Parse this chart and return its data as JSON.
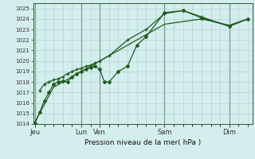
{
  "background_color": "#d4eeed",
  "grid_color": "#aacece",
  "line_color": "#1e5c1e",
  "title": "Pression niveau de la mer( hPa )",
  "ylim": [
    1014,
    1025.5
  ],
  "yticks": [
    1014,
    1015,
    1016,
    1017,
    1018,
    1019,
    1020,
    1021,
    1022,
    1023,
    1024,
    1025
  ],
  "day_labels": [
    "Jeu",
    "Lun",
    "Ven",
    "Sam",
    "Dim"
  ],
  "day_positions": [
    0,
    5,
    7,
    14,
    21
  ],
  "xlim": [
    -0.2,
    23.5
  ],
  "line1_x": [
    0,
    0.5,
    1.0,
    1.5,
    2.0,
    2.5,
    3.0,
    3.5,
    4.0,
    4.5,
    5.0,
    5.5,
    6.0,
    6.5,
    7.0,
    7.5,
    8.0,
    9.0,
    10.0,
    11.0,
    12.0,
    14.0,
    16.0,
    18.0,
    21.0,
    23.0
  ],
  "line1_y": [
    1014.1,
    1015.1,
    1016.2,
    1017.0,
    1017.8,
    1018.0,
    1018.1,
    1018.0,
    1018.5,
    1018.8,
    1019.0,
    1019.2,
    1019.4,
    1019.5,
    1019.2,
    1018.0,
    1018.0,
    1019.0,
    1019.5,
    1021.5,
    1022.3,
    1024.6,
    1024.8,
    1024.1,
    1023.3,
    1024.0
  ],
  "line2_x": [
    0.5,
    1.0,
    1.5,
    2.0,
    2.5,
    3.0,
    3.5,
    4.0,
    4.5,
    5.0,
    5.5,
    6.0,
    6.5,
    7.0,
    8.0,
    10.0,
    12.0,
    14.0,
    16.0,
    18.0,
    21.0,
    23.0
  ],
  "line2_y": [
    1017.2,
    1017.8,
    1018.0,
    1018.2,
    1018.3,
    1018.5,
    1018.8,
    1019.0,
    1019.2,
    1019.3,
    1019.5,
    1019.6,
    1019.8,
    1020.0,
    1020.5,
    1022.0,
    1023.0,
    1024.5,
    1024.8,
    1024.2,
    1023.3,
    1024.0
  ],
  "line3_x": [
    0,
    2,
    5,
    7,
    10,
    14,
    18,
    21,
    23
  ],
  "line3_y": [
    1014.2,
    1017.5,
    1019.0,
    1020.0,
    1021.5,
    1023.5,
    1024.0,
    1023.4,
    1024.0
  ]
}
